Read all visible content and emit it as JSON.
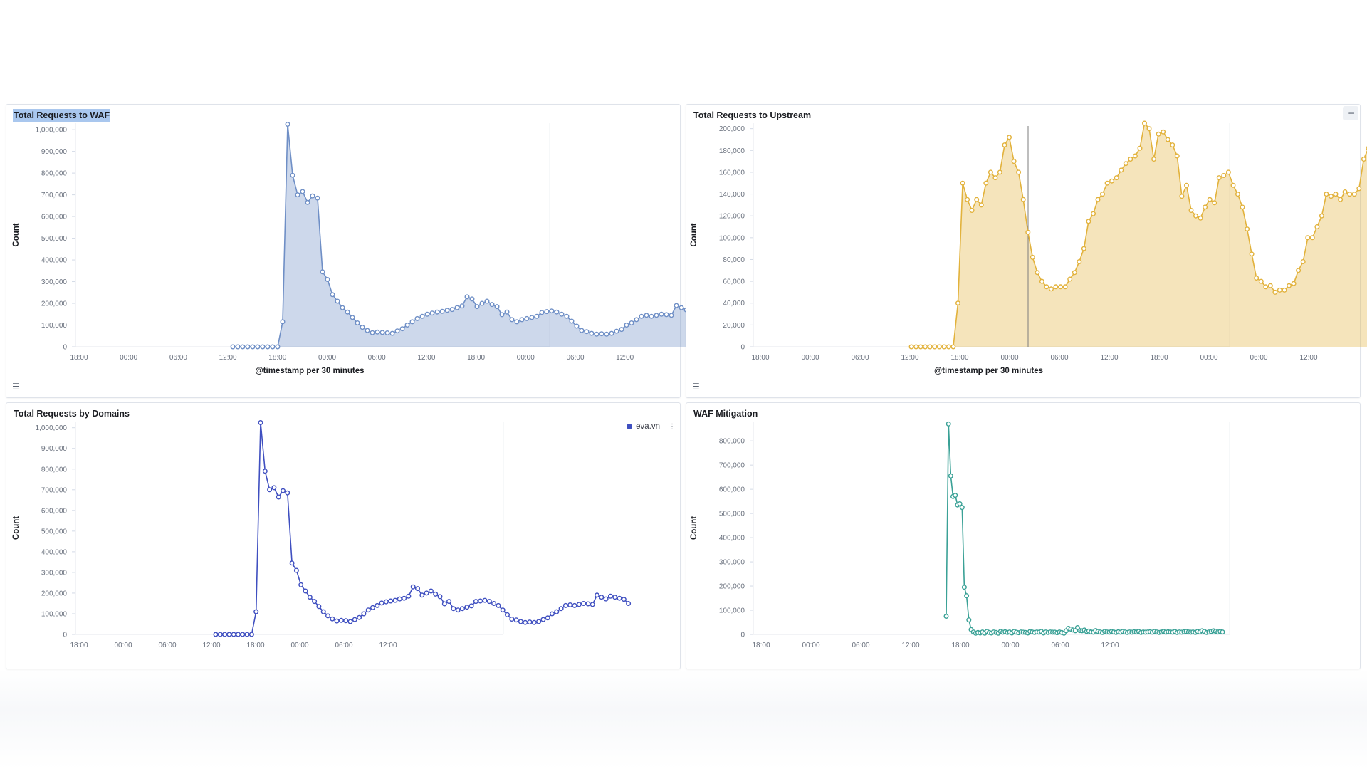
{
  "colors": {
    "waf": "#6f8fc6",
    "upstream": "#e2b23c",
    "domains": "#3f4fc0",
    "mitigation": "#3aa196"
  },
  "icons": {
    "legend_toggle": "list-icon",
    "panel_menu": "ellipsis-icon"
  },
  "panels": [
    {
      "title": "Total Requests to WAF",
      "y_axis_label": "Count",
      "x_axis_label": "@timestamp per 30 minutes",
      "menu_glyph": "▫▫▫",
      "legend_glyph": "☰"
    },
    {
      "title": "Total Requests to Upstream",
      "y_axis_label": "Count",
      "x_axis_label": "@timestamp per 30 minutes",
      "menu_glyph": "▫▫▫",
      "legend_glyph": "☰"
    },
    {
      "title": "Total Requests by Domains",
      "y_axis_label": "Count",
      "x_axis_label": "",
      "menu_glyph": "⋮",
      "legend_label": "eva.vn"
    },
    {
      "title": "WAF Mitigation",
      "y_axis_label": "Count",
      "x_axis_label": ""
    }
  ],
  "chart_data": [
    {
      "type": "area",
      "title": "Total Requests to WAF",
      "xlabel": "@timestamp per 30 minutes",
      "ylabel": "Count",
      "x_ticks": [
        "18:00",
        "00:00",
        "06:00",
        "12:00",
        "18:00",
        "00:00",
        "06:00",
        "12:00",
        "18:00",
        "00:00",
        "06:00",
        "12:00"
      ],
      "y_ticks": [
        "0",
        "100,000",
        "200,000",
        "300,000",
        "400,000",
        "500,000",
        "600,000",
        "700,000",
        "800,000",
        "900,000",
        "1,000,000"
      ],
      "ylim": [
        0,
        1030000
      ],
      "x_interval": "30 minutes",
      "grid": false,
      "series": [
        {
          "name": "",
          "values": [
            0,
            0,
            0,
            0,
            0,
            0,
            0,
            0,
            0,
            0,
            115000,
            1025000,
            790000,
            700000,
            715000,
            665000,
            695000,
            685000,
            345000,
            310000,
            240000,
            210000,
            180000,
            160000,
            135000,
            110000,
            90000,
            75000,
            65000,
            68000,
            66000,
            64000,
            62000,
            73000,
            83000,
            100000,
            115000,
            130000,
            140000,
            150000,
            155000,
            160000,
            163000,
            168000,
            172000,
            180000,
            188000,
            230000,
            220000,
            185000,
            200000,
            210000,
            195000,
            185000,
            148000,
            160000,
            125000,
            115000,
            125000,
            130000,
            135000,
            140000,
            158000,
            162000,
            165000,
            160000,
            150000,
            140000,
            118000,
            95000,
            75000,
            70000,
            62000,
            58000,
            60000,
            58000,
            62000,
            72000,
            80000,
            100000,
            110000,
            125000,
            140000,
            145000,
            140000,
            145000,
            150000,
            148000,
            145000,
            190000,
            180000,
            170000,
            175000,
            185000,
            180000,
            175000,
            170000,
            150000
          ]
        }
      ]
    },
    {
      "type": "area",
      "title": "Total Requests to Upstream",
      "xlabel": "@timestamp per 30 minutes",
      "ylabel": "Count",
      "x_ticks": [
        "18:00",
        "00:00",
        "06:00",
        "12:00",
        "18:00",
        "00:00",
        "06:00",
        "12:00",
        "18:00",
        "00:00",
        "06:00",
        "12:00"
      ],
      "y_ticks": [
        "0",
        "20,000",
        "40,000",
        "60,000",
        "80,000",
        "100,000",
        "120,000",
        "140,000",
        "160,000",
        "180,000",
        "200,000"
      ],
      "ylim": [
        0,
        205000
      ],
      "x_interval": "30 minutes",
      "grid": false,
      "cursor_line": true,
      "series": [
        {
          "name": "",
          "values": [
            0,
            0,
            0,
            0,
            0,
            0,
            0,
            0,
            0,
            0,
            40000,
            150000,
            135000,
            125000,
            135000,
            130000,
            150000,
            160000,
            155000,
            160000,
            185000,
            192000,
            170000,
            160000,
            135000,
            105000,
            82000,
            68000,
            60000,
            55000,
            53000,
            55000,
            55000,
            55000,
            62000,
            68000,
            78000,
            90000,
            115000,
            122000,
            135000,
            140000,
            150000,
            152000,
            155000,
            162000,
            168000,
            172000,
            175000,
            182000,
            205000,
            200000,
            172000,
            195000,
            197000,
            190000,
            185000,
            175000,
            138000,
            148000,
            125000,
            120000,
            118000,
            128000,
            135000,
            132000,
            155000,
            157000,
            160000,
            148000,
            140000,
            128000,
            108000,
            85000,
            63000,
            60000,
            55000,
            56000,
            50000,
            52000,
            52000,
            56000,
            58000,
            70000,
            78000,
            100000,
            100000,
            110000,
            120000,
            140000,
            138000,
            140000,
            135000,
            142000,
            140000,
            140000,
            145000,
            172000,
            182000,
            170000,
            178000,
            175000,
            170000,
            168000,
            165000,
            143000
          ]
        }
      ]
    },
    {
      "type": "line",
      "title": "Total Requests by Domains",
      "xlabel": "",
      "ylabel": "Count",
      "x_ticks": [
        "18:00",
        "00:00",
        "06:00",
        "12:00",
        "18:00",
        "00:00",
        "06:00",
        "12:00"
      ],
      "y_ticks": [
        "0",
        "100,000",
        "200,000",
        "300,000",
        "400,000",
        "500,000",
        "600,000",
        "700,000",
        "800,000",
        "900,000",
        "1,000,000"
      ],
      "ylim": [
        0,
        1030000
      ],
      "legend": "top-right",
      "grid": false,
      "series": [
        {
          "name": "eva.vn",
          "values": [
            0,
            0,
            0,
            0,
            0,
            0,
            0,
            0,
            0,
            110000,
            1025000,
            790000,
            700000,
            710000,
            665000,
            695000,
            685000,
            345000,
            310000,
            240000,
            210000,
            180000,
            160000,
            135000,
            110000,
            90000,
            75000,
            65000,
            68000,
            66000,
            62000,
            72000,
            82000,
            100000,
            118000,
            130000,
            140000,
            152000,
            158000,
            162000,
            165000,
            172000,
            175000,
            185000,
            230000,
            222000,
            190000,
            200000,
            210000,
            195000,
            183000,
            148000,
            160000,
            125000,
            118000,
            125000,
            132000,
            138000,
            160000,
            162000,
            165000,
            160000,
            150000,
            140000,
            118000,
            95000,
            74000,
            70000,
            62000,
            58000,
            60000,
            58000,
            62000,
            72000,
            80000,
            100000,
            110000,
            125000,
            140000,
            143000,
            140000,
            145000,
            150000,
            148000,
            145000,
            190000,
            180000,
            172000,
            185000,
            180000,
            175000,
            170000,
            150000
          ]
        }
      ]
    },
    {
      "type": "line",
      "title": "WAF Mitigation",
      "xlabel": "",
      "ylabel": "Count",
      "x_ticks": [
        "18:00",
        "00:00",
        "06:00",
        "12:00",
        "18:00",
        "00:00",
        "06:00",
        "12:00"
      ],
      "y_ticks": [
        "0",
        "100,000",
        "200,000",
        "300,000",
        "400,000",
        "500,000",
        "600,000",
        "700,000",
        "800,000"
      ],
      "ylim": [
        0,
        880000
      ],
      "grid": false,
      "series": [
        {
          "name": "",
          "values": [
            75000,
            870000,
            655000,
            570000,
            575000,
            535000,
            540000,
            525000,
            195000,
            160000,
            60000,
            20000,
            10000,
            5000,
            8000,
            6000,
            10000,
            5000,
            12000,
            8000,
            6000,
            10000,
            8000,
            5000,
            12000,
            9000,
            11000,
            8000,
            10000,
            6000,
            12000,
            9000,
            7000,
            10000,
            9000,
            8000,
            6000,
            12000,
            10000,
            8000,
            10000,
            9000,
            12000,
            6000,
            10000,
            8000,
            10000,
            9000,
            9000,
            7000,
            10000,
            8000,
            5000,
            15000,
            25000,
            22000,
            18000,
            15000,
            28000,
            16000,
            15000,
            18000,
            12000,
            14000,
            10000,
            9000,
            16000,
            12000,
            10000,
            8000,
            12000,
            10000,
            9000,
            12000,
            10000,
            8000,
            11000,
            9000,
            12000,
            10000,
            8000,
            10000,
            9000,
            11000,
            10000,
            12000,
            8000,
            10000,
            9000,
            10000,
            11000,
            9000,
            12000,
            10000,
            8000,
            10000,
            12000,
            9000,
            11000,
            10000,
            9000,
            12000,
            8000,
            10000,
            9000,
            11000,
            12000,
            10000,
            9000,
            10000,
            8000,
            12000,
            10000,
            15000,
            12000,
            8000,
            10000,
            12000,
            15000,
            13000,
            10000,
            12000,
            10000
          ]
        }
      ]
    }
  ]
}
